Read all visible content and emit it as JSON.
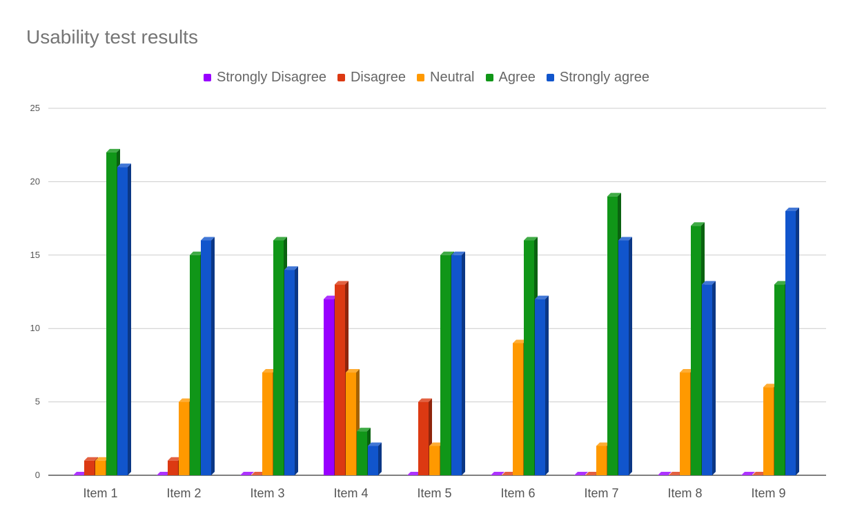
{
  "chart_data": {
    "type": "bar",
    "title": "Usability test results",
    "categories": [
      "Item 1",
      "Item 2",
      "Item 3",
      "Item 4",
      "Item 5",
      "Item 6",
      "Item 7",
      "Item 8",
      "Item 9"
    ],
    "series": [
      {
        "name": "Strongly Disagree",
        "color": "#9900ff",
        "values": [
          0,
          0,
          0,
          12,
          0,
          0,
          0,
          0,
          0
        ]
      },
      {
        "name": "Disagree",
        "color": "#dc3912",
        "values": [
          1,
          1,
          0,
          13,
          5,
          0,
          0,
          0,
          0
        ]
      },
      {
        "name": "Neutral",
        "color": "#ff9900",
        "values": [
          1,
          5,
          7,
          7,
          2,
          9,
          2,
          7,
          6
        ]
      },
      {
        "name": "Agree",
        "color": "#109618",
        "values": [
          22,
          15,
          16,
          3,
          15,
          16,
          19,
          17,
          13
        ]
      },
      {
        "name": "Strongly agree",
        "color": "#1155cc",
        "values": [
          21,
          16,
          14,
          2,
          15,
          12,
          16,
          13,
          18
        ]
      }
    ],
    "ylim": [
      0,
      25
    ],
    "yticks": [
      "0",
      "5",
      "10",
      "15",
      "20",
      "25"
    ],
    "grid": true,
    "legend_position": "top-center",
    "xlabel": "",
    "ylabel": ""
  }
}
